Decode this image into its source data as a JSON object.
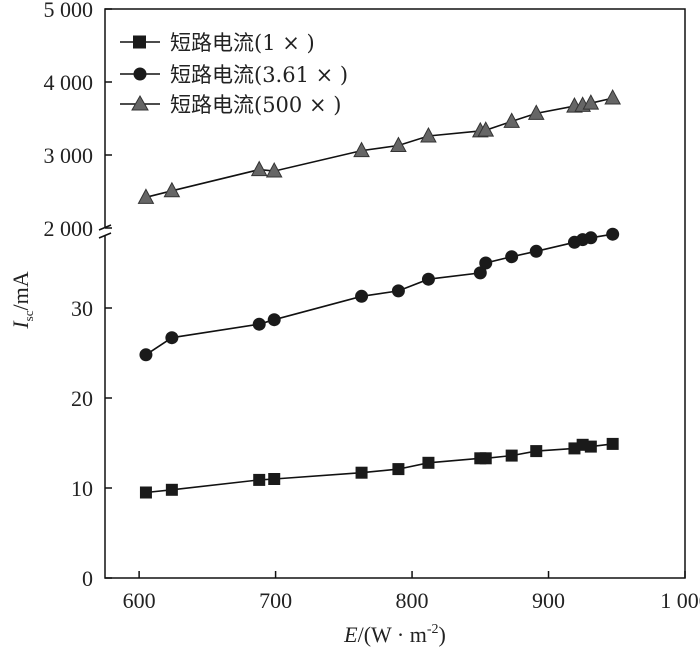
{
  "chart_data": {
    "type": "line",
    "title": "",
    "xlabel": {
      "italic": "E",
      "rest": "/(W · m",
      "sup": "-2",
      "close": ")"
    },
    "ylabel": {
      "italic": "I",
      "sub": "sc",
      "rest": "/mA"
    },
    "xlim": [
      575,
      1000
    ],
    "x_ticks": [
      600,
      700,
      800,
      900,
      1000
    ],
    "x_tick_labels": [
      "600",
      "700",
      "800",
      "900",
      "1 000"
    ],
    "lower_axis": {
      "ylim": [
        0,
        38
      ],
      "ticks": [
        0,
        10,
        20,
        30
      ],
      "tick_labels": [
        "0",
        "10",
        "20",
        "30"
      ]
    },
    "upper_axis": {
      "ylim": [
        2000,
        5000
      ],
      "ticks": [
        2000,
        3000,
        4000,
        5000
      ],
      "tick_labels": [
        "2 000",
        "3 000",
        "4 000",
        "5 000"
      ]
    },
    "legend_position": "top-left",
    "series": [
      {
        "name": "短路电流(1 × )",
        "marker": "square",
        "axis": "lower",
        "x": [
          605,
          624,
          688,
          699,
          763,
          790,
          812,
          850,
          854,
          873,
          891,
          919,
          925,
          931,
          947
        ],
        "y": [
          9.5,
          9.8,
          10.9,
          11.0,
          11.7,
          12.1,
          12.8,
          13.3,
          13.3,
          13.6,
          14.1,
          14.4,
          14.8,
          14.6,
          14.9
        ]
      },
      {
        "name": "短路电流(3.61 × )",
        "marker": "circle",
        "axis": "lower",
        "x": [
          605,
          624,
          688,
          699,
          763,
          790,
          812,
          850,
          854,
          873,
          891,
          919,
          925,
          931,
          947
        ],
        "y": [
          24.8,
          26.7,
          28.2,
          28.7,
          31.3,
          31.9,
          33.2,
          33.9,
          35.0,
          35.7,
          36.3,
          37.3,
          37.6,
          37.8,
          38.2
        ]
      },
      {
        "name": "短路电流(500 × )",
        "marker": "triangle",
        "axis": "upper",
        "x": [
          605,
          624,
          688,
          699,
          763,
          790,
          812,
          850,
          854,
          873,
          891,
          919,
          925,
          931,
          947
        ],
        "y": [
          2420,
          2510,
          2800,
          2780,
          3060,
          3130,
          3260,
          3330,
          3340,
          3460,
          3570,
          3670,
          3680,
          3710,
          3780
        ]
      }
    ]
  }
}
